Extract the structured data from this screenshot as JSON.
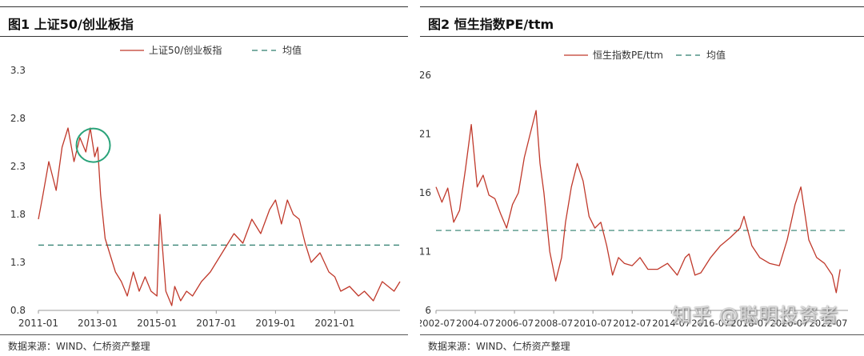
{
  "watermark": "知乎 @聪明投资者",
  "colors": {
    "line": "#c0392b",
    "mean": "#2e7d6e"
  },
  "charts": [
    {
      "title": "图1  上证50/创业板指",
      "source": "数据来源：WIND、仁桥资产整理",
      "chart_data": {
        "type": "line",
        "ylim": [
          0.8,
          3.3
        ],
        "yticks": [
          "3.3",
          "2.8",
          "2.3",
          "1.8",
          "1.3",
          "0.8"
        ],
        "xlim": [
          2011.0,
          2023.2
        ],
        "xticks": [
          "2011-01",
          "2013-01",
          "2015-01",
          "2017-01",
          "2019-01",
          "2021-01"
        ],
        "legend": [
          "上证50/创业板指",
          "均值"
        ],
        "series": [
          {
            "name": "上证50/创业板指",
            "x": [
              2011.0,
              2011.15,
              2011.35,
              2011.6,
              2011.8,
              2012.0,
              2012.2,
              2012.4,
              2012.6,
              2012.75,
              2012.9,
              2013.0,
              2013.1,
              2013.25,
              2013.4,
              2013.6,
              2013.8,
              2014.0,
              2014.2,
              2014.4,
              2014.6,
              2014.8,
              2015.0,
              2015.1,
              2015.3,
              2015.5,
              2015.6,
              2015.8,
              2016.0,
              2016.2,
              2016.5,
              2016.8,
              2017.0,
              2017.3,
              2017.6,
              2017.9,
              2018.2,
              2018.5,
              2018.8,
              2019.0,
              2019.2,
              2019.4,
              2019.6,
              2019.8,
              2020.0,
              2020.2,
              2020.5,
              2020.8,
              2021.0,
              2021.2,
              2021.5,
              2021.8,
              2022.0,
              2022.3,
              2022.6,
              2022.8,
              2023.0,
              2023.2
            ],
            "y": [
              1.75,
              2.0,
              2.35,
              2.05,
              2.5,
              2.7,
              2.35,
              2.6,
              2.45,
              2.7,
              2.4,
              2.5,
              2.0,
              1.55,
              1.4,
              1.2,
              1.1,
              0.95,
              1.2,
              1.0,
              1.15,
              1.0,
              0.95,
              1.8,
              1.0,
              0.85,
              1.05,
              0.9,
              1.0,
              0.95,
              1.1,
              1.2,
              1.3,
              1.45,
              1.6,
              1.5,
              1.75,
              1.6,
              1.85,
              1.95,
              1.7,
              1.95,
              1.8,
              1.75,
              1.5,
              1.3,
              1.4,
              1.2,
              1.15,
              1.0,
              1.05,
              0.95,
              1.0,
              0.9,
              1.1,
              1.05,
              1.0,
              1.1
            ]
          },
          {
            "name": "均值",
            "value": 1.48
          }
        ],
        "annotation": "circle highlighting 2012-2013 peak"
      }
    },
    {
      "title": "图2  恒生指数PE/ttm",
      "source": "数据来源：WIND、仁桥资产整理",
      "chart_data": {
        "type": "line",
        "ylim": [
          6,
          26
        ],
        "yticks": [
          "26",
          "21",
          "16",
          "11",
          "6"
        ],
        "xlim": [
          2002.5,
          2023.5
        ],
        "xticks": [
          "2002-07",
          "2004-07",
          "2006-07",
          "2008-07",
          "2010-07",
          "2012-07",
          "2014-07",
          "2016-07",
          "2018-07",
          "2020-07",
          "2022-07"
        ],
        "legend": [
          "恒生指数PE/ttm",
          "均值"
        ],
        "series": [
          {
            "name": "恒生指数PE/ttm",
            "x": [
              2002.5,
              2002.8,
              2003.1,
              2003.4,
              2003.7,
              2004.0,
              2004.3,
              2004.6,
              2004.9,
              2005.2,
              2005.5,
              2005.8,
              2006.1,
              2006.4,
              2006.7,
              2007.0,
              2007.3,
              2007.6,
              2007.8,
              2008.0,
              2008.3,
              2008.6,
              2008.9,
              2009.1,
              2009.4,
              2009.7,
              2010.0,
              2010.3,
              2010.6,
              2010.9,
              2011.2,
              2011.5,
              2011.8,
              2012.1,
              2012.5,
              2012.9,
              2013.3,
              2013.8,
              2014.3,
              2014.8,
              2015.2,
              2015.4,
              2015.7,
              2016.0,
              2016.5,
              2017.0,
              2017.5,
              2018.0,
              2018.2,
              2018.6,
              2019.0,
              2019.5,
              2020.0,
              2020.4,
              2020.8,
              2021.1,
              2021.5,
              2021.9,
              2022.3,
              2022.7,
              2022.9,
              2023.1
            ],
            "y": [
              16.5,
              15.2,
              16.4,
              13.5,
              14.5,
              18.0,
              21.8,
              16.5,
              17.5,
              15.8,
              15.5,
              14.2,
              13.0,
              15.0,
              16.0,
              19.0,
              21.0,
              23.0,
              18.5,
              16.0,
              11.0,
              8.5,
              10.5,
              13.5,
              16.5,
              18.5,
              17.0,
              14.0,
              13.0,
              13.5,
              11.5,
              9.0,
              10.5,
              10.0,
              9.8,
              10.5,
              9.5,
              9.5,
              10.0,
              9.0,
              10.5,
              10.8,
              9.0,
              9.2,
              10.5,
              11.5,
              12.2,
              13.0,
              14.0,
              11.5,
              10.5,
              10.0,
              9.8,
              12.0,
              15.0,
              16.5,
              12.0,
              10.5,
              10.0,
              9.0,
              7.5,
              9.5
            ]
          },
          {
            "name": "均值",
            "value": 12.8
          }
        ]
      }
    }
  ]
}
